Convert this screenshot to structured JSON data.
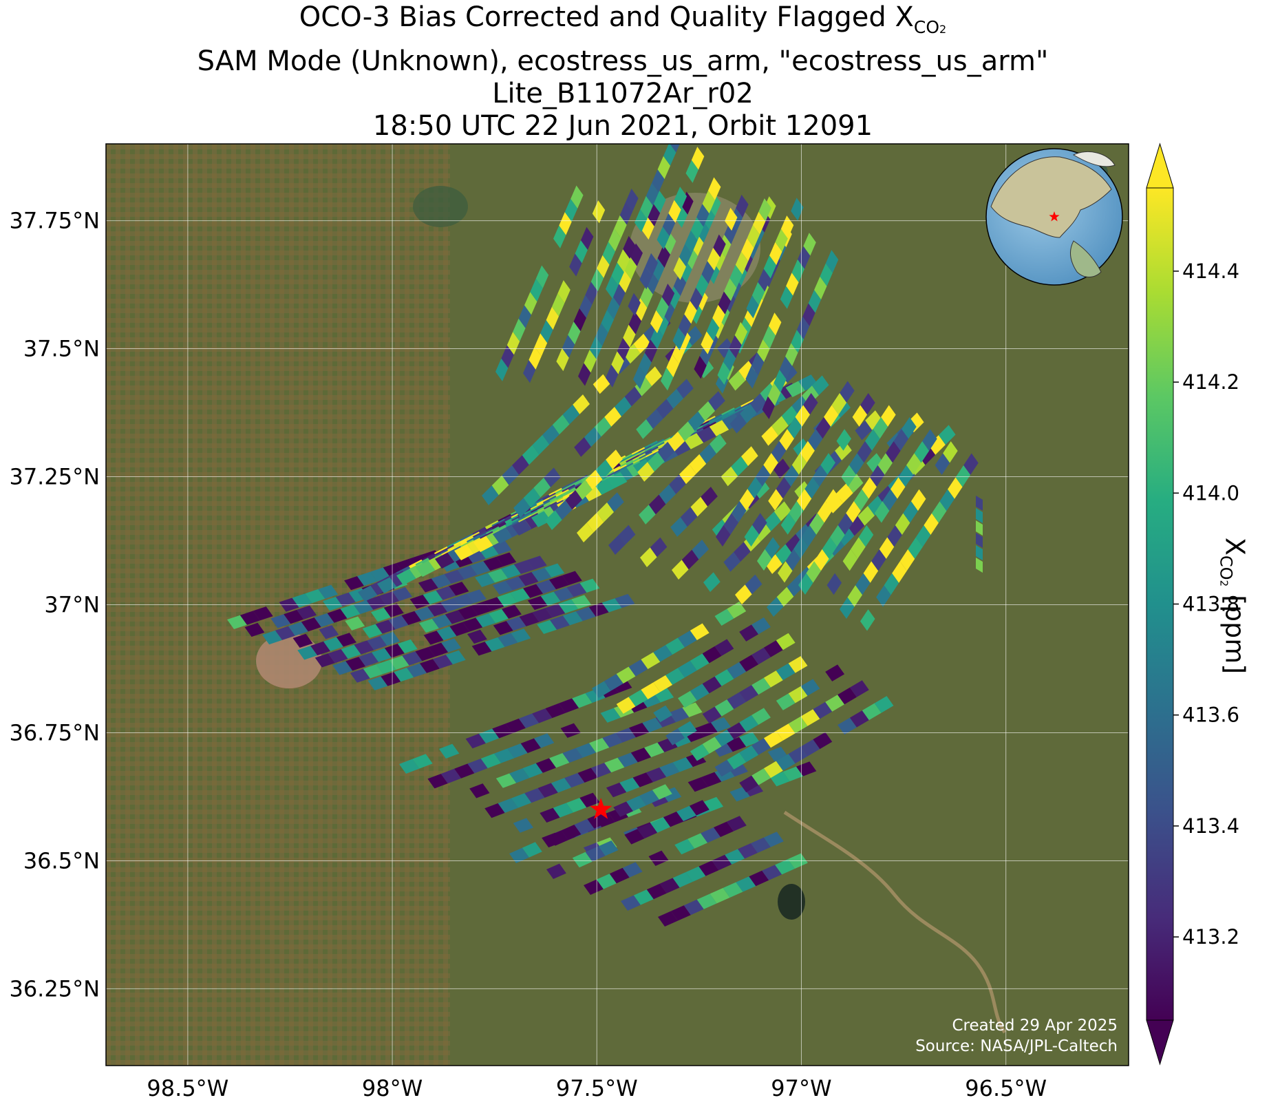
{
  "title": {
    "line1_prefix": "OCO-3 Bias Corrected and Quality Flagged X",
    "line1_sub": "CO",
    "line1_subsub": "2",
    "line2": "SAM Mode (Unknown), ecostress_us_arm, \"ecostress_us_arm\"",
    "line3": "Lite_B11072Ar_r02",
    "line4": "18:50 UTC 22 Jun 2021, Orbit 12091"
  },
  "chart_data": {
    "type": "heatmap",
    "map_type": "satellite-imagery swath map",
    "lon_range": [
      -98.7,
      -96.2
    ],
    "lat_range": [
      36.1,
      37.9
    ],
    "x_ticks": [
      "98.5°W",
      "98°W",
      "97.5°W",
      "97°W",
      "96.5°W"
    ],
    "x_tick_values": [
      -98.5,
      -98.0,
      -97.5,
      -97.0,
      -96.5
    ],
    "y_ticks": [
      "36.25°N",
      "36.5°N",
      "36.75°N",
      "37°N",
      "37.25°N",
      "37.5°N",
      "37.75°N"
    ],
    "y_tick_values": [
      36.25,
      36.5,
      36.75,
      37.0,
      37.25,
      37.5,
      37.75
    ],
    "grid": true,
    "colorbar": {
      "colormap": "viridis",
      "range": [
        413.05,
        414.55
      ],
      "extend": "both",
      "ticks": [
        413.2,
        413.4,
        413.6,
        413.8,
        414.0,
        414.2,
        414.4
      ],
      "tick_labels": [
        "413.2",
        "413.4",
        "413.6",
        "413.8",
        "414.0",
        "414.2",
        "414.4"
      ],
      "label_prefix": "X",
      "label_sub": "CO",
      "label_subsub": "2",
      "label_suffix": " [ppm]"
    },
    "target": {
      "lon": -97.49,
      "lat": 36.6,
      "marker": "red-star"
    },
    "inset_globe": {
      "marker": "red-star",
      "region": "North America"
    }
  },
  "colors": {
    "viridis": [
      "#440154",
      "#472c7a",
      "#3b518b",
      "#2c718e",
      "#21908d",
      "#27ad81",
      "#5cc863",
      "#aadc32",
      "#fde725"
    ],
    "target_marker": "#ff0000",
    "gridline": "#ffffff"
  },
  "credits": {
    "created": "Created 29 Apr 2025",
    "source": "Source: NASA/JPL-Caltech"
  }
}
